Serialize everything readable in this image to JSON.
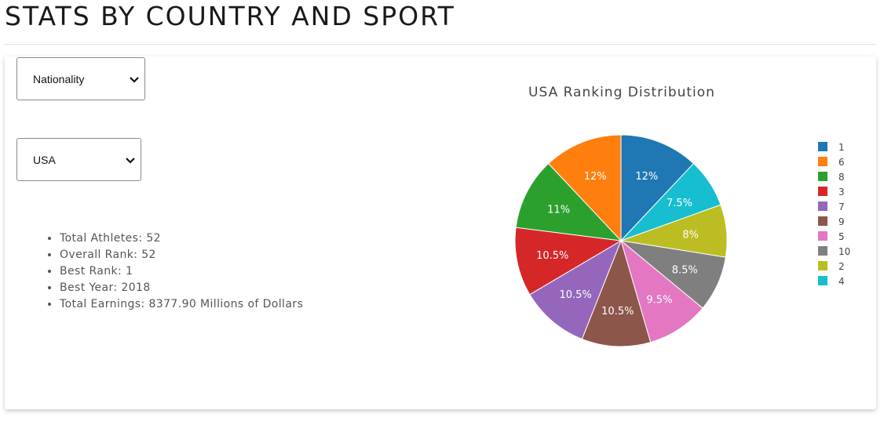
{
  "page": {
    "title": "STATS BY COUNTRY AND SPORT"
  },
  "filters": {
    "group_by": {
      "selected": "Nationality"
    },
    "country": {
      "selected": "USA"
    }
  },
  "stats": {
    "items": [
      {
        "label": "Total Athletes:",
        "value": "52"
      },
      {
        "label": "Overall Rank:",
        "value": "52"
      },
      {
        "label": "Best Rank:",
        "value": "1"
      },
      {
        "label": "Best Year:",
        "value": "2018"
      },
      {
        "label": "Total Earnings:",
        "value": "8377.90 Millions of Dollars"
      }
    ]
  },
  "chart_data": {
    "type": "pie",
    "title": "USA Ranking Distribution",
    "legend_position": "right",
    "slices": [
      {
        "label": "1",
        "value": 12,
        "text": "12%",
        "color": "#1f77b4"
      },
      {
        "label": "4",
        "value": 7.5,
        "text": "7.5%",
        "color": "#17becf"
      },
      {
        "label": "2",
        "value": 8,
        "text": "8%",
        "color": "#bcbd22"
      },
      {
        "label": "10",
        "value": 8.5,
        "text": "8.5%",
        "color": "#7f7f7f"
      },
      {
        "label": "5",
        "value": 9.5,
        "text": "9.5%",
        "color": "#e377c2"
      },
      {
        "label": "9",
        "value": 10.5,
        "text": "10.5%",
        "color": "#8c564b"
      },
      {
        "label": "7",
        "value": 10.5,
        "text": "10.5%",
        "color": "#9467bd"
      },
      {
        "label": "3",
        "value": 10.5,
        "text": "10.5%",
        "color": "#d62728"
      },
      {
        "label": "8",
        "value": 11,
        "text": "11%",
        "color": "#2ca02c"
      },
      {
        "label": "6",
        "value": 12,
        "text": "12%",
        "color": "#ff7f0e"
      }
    ],
    "legend": [
      {
        "label": "1",
        "color": "#1f77b4"
      },
      {
        "label": "6",
        "color": "#ff7f0e"
      },
      {
        "label": "8",
        "color": "#2ca02c"
      },
      {
        "label": "3",
        "color": "#d62728"
      },
      {
        "label": "7",
        "color": "#9467bd"
      },
      {
        "label": "9",
        "color": "#8c564b"
      },
      {
        "label": "5",
        "color": "#e377c2"
      },
      {
        "label": "10",
        "color": "#7f7f7f"
      },
      {
        "label": "2",
        "color": "#bcbd22"
      },
      {
        "label": "4",
        "color": "#17becf"
      }
    ]
  }
}
